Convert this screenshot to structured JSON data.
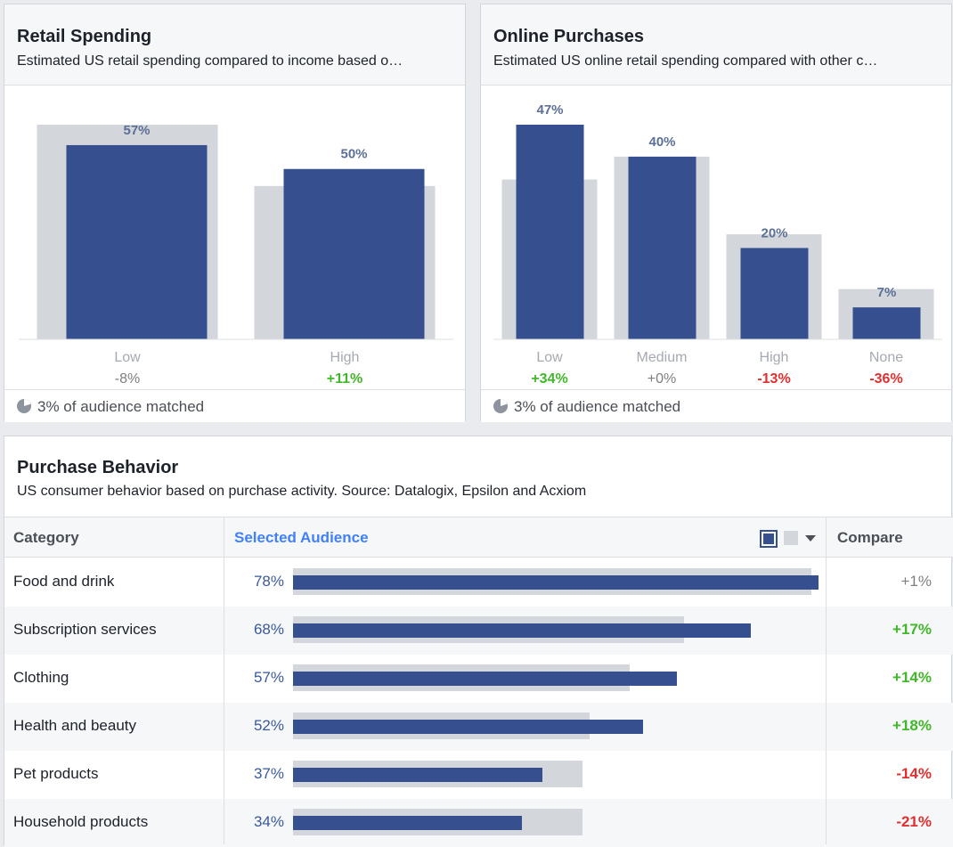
{
  "retail": {
    "title": "Retail Spending",
    "subtitle": "Estimated US retail spending compared to income based o…",
    "footer": "3% of audience matched"
  },
  "online": {
    "title": "Online Purchases",
    "subtitle": "Estimated US online retail spending compared with other c…",
    "footer": "3% of audience matched"
  },
  "purchase": {
    "title": "Purchase Behavior",
    "subtitle": "US consumer behavior based on purchase activity. Source: Datalogix, Epsilon and Acxiom",
    "col_category": "Category",
    "col_selected": "Selected Audience",
    "col_compare": "Compare"
  },
  "colors": {
    "selected": "#36508f",
    "baseline": "#d3d6db",
    "positive": "#42b72a",
    "negative": "#e02f2f",
    "neutral": "#7f7f7f"
  },
  "chart_data": [
    {
      "type": "bar",
      "categories": [
        "Low",
        "High"
      ],
      "series": [
        {
          "values": [
            57,
            50
          ],
          "labels": [
            "57%",
            "50%"
          ]
        },
        {
          "values": [
            63,
            45
          ]
        }
      ],
      "deltas": [
        "-8%",
        "+11%"
      ],
      "delta_sign": [
        "negative-muted",
        "positive"
      ],
      "ylim": [
        0,
        63
      ]
    },
    {
      "type": "bar",
      "categories": [
        "Low",
        "Medium",
        "High",
        "None"
      ],
      "series": [
        {
          "values": [
            47,
            40,
            20,
            7
          ],
          "labels": [
            "47%",
            "40%",
            "20%",
            "7%"
          ]
        },
        {
          "values": [
            35,
            40,
            23,
            11
          ]
        }
      ],
      "deltas": [
        "+34%",
        "+0%",
        "-13%",
        "-36%"
      ],
      "delta_sign": [
        "positive",
        "neutral",
        "negative",
        "negative"
      ],
      "ylim": [
        0,
        47
      ]
    },
    {
      "type": "bar",
      "orientation": "horizontal",
      "categories": [
        "Food and drink",
        "Subscription services",
        "Clothing",
        "Health and beauty",
        "Pet products",
        "Household products"
      ],
      "series": [
        {
          "values": [
            78,
            68,
            57,
            52,
            37,
            34
          ],
          "labels": [
            "78%",
            "68%",
            "57%",
            "52%",
            "37%",
            "34%"
          ]
        },
        {
          "values": [
            77,
            58,
            50,
            44,
            43,
            43
          ]
        }
      ],
      "compare": [
        "+1%",
        "+17%",
        "+14%",
        "+18%",
        "-14%",
        "-21%"
      ],
      "compare_sign": [
        "neutral",
        "positive",
        "positive",
        "positive",
        "negative",
        "negative"
      ],
      "xlim": [
        0,
        78
      ]
    }
  ]
}
